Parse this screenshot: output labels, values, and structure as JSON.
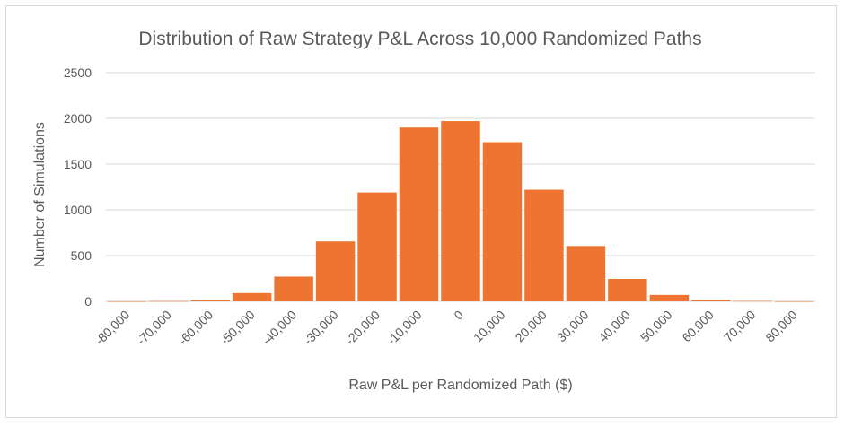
{
  "chart_data": {
    "type": "bar",
    "title": "Distribution of Raw Strategy P&L Across 10,000 Randomized Paths",
    "xlabel": "Raw P&L per Randomized Path ($)",
    "ylabel": "Number of Simulations",
    "categories": [
      "-80,000",
      "-70,000",
      "-60,000",
      "-50,000",
      "-40,000",
      "-30,000",
      "-20,000",
      "-10,000",
      "0",
      "10,000",
      "20,000",
      "30,000",
      "40,000",
      "50,000",
      "60,000",
      "70,000",
      "80,000"
    ],
    "values": [
      1,
      3,
      12,
      90,
      270,
      655,
      1190,
      1900,
      1970,
      1740,
      1220,
      605,
      245,
      70,
      15,
      4,
      1
    ],
    "ylim": [
      0,
      2500
    ],
    "yticks": [
      "0",
      "500",
      "1000",
      "1500",
      "2000",
      "2500"
    ],
    "grid": true,
    "legend": "none",
    "bar_color": "#ed7431"
  }
}
